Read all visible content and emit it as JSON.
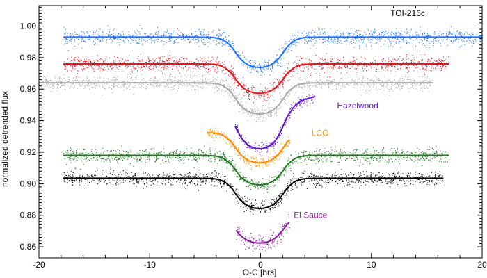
{
  "chart_data": {
    "type": "scatter",
    "title": "TOI-216c",
    "xlabel": "O-C [hrs]",
    "ylabel": "normalized detrended flux",
    "xlim": [
      -20,
      20
    ],
    "ylim": [
      0.853,
      1.013
    ],
    "x_ticks": [
      -20,
      -10,
      0,
      10,
      20
    ],
    "y_ticks": [
      0.86,
      0.88,
      0.9,
      0.92,
      0.94,
      0.96,
      0.98,
      1.0
    ],
    "grid": false,
    "series": [
      {
        "color": "#1f6fff",
        "baseline": 0.993,
        "depth": 0.018,
        "x_start": -17.8,
        "x_end": 20,
        "noise": 0.0024,
        "ingress": -2.6,
        "egress": 2.4
      },
      {
        "color": "#e8141b",
        "baseline": 0.976,
        "depth": 0.0175,
        "x_start": -17.8,
        "x_end": 17.0,
        "noise": 0.0024,
        "ingress": -2.6,
        "egress": 2.4
      },
      {
        "color": "#a8a8a8",
        "baseline": 0.964,
        "depth": 0.0185,
        "x_start": -19.8,
        "x_end": 15.5,
        "noise": 0.0024,
        "ingress": -2.6,
        "egress": 2.4
      },
      {
        "color": "#5b14c8",
        "baseline": 0.95,
        "depth": 0.026,
        "x_start": -2.3,
        "x_end": 4.9,
        "noise": 0.0016,
        "ingress": -2.6,
        "egress": 2.4,
        "trend": 0.0015,
        "truncated": true
      },
      {
        "color": "#ff8c00",
        "baseline": 0.9325,
        "depth": 0.018,
        "x_start": -4.8,
        "x_end": 2.6,
        "noise": 0.0018,
        "ingress": -2.6,
        "egress": 2.4
      },
      {
        "color": "#1d7a1d",
        "baseline": 0.918,
        "depth": 0.0175,
        "x_start": -17.8,
        "x_end": 17.0,
        "noise": 0.0022,
        "ingress": -2.6,
        "egress": 2.4
      },
      {
        "color": "#000000",
        "baseline": 0.9035,
        "depth": 0.018,
        "x_start": -17.8,
        "x_end": 16.5,
        "noise": 0.0022,
        "ingress": -2.6,
        "egress": 2.4
      },
      {
        "color": "#8b1a9a",
        "baseline": 0.88,
        "depth": 0.0165,
        "x_start": -2.2,
        "x_end": 2.6,
        "noise": 0.0025,
        "ingress": -2.6,
        "egress": 2.4,
        "truncated": true
      }
    ],
    "annotations": [
      {
        "text": "Hazelwood",
        "x": 6.9,
        "y": 0.9495,
        "color": "#5b14c8"
      },
      {
        "text": "LCO",
        "x": 4.6,
        "y": 0.9322,
        "color": "#ff8c00"
      },
      {
        "text": "El Sauce",
        "x": 3.0,
        "y": 0.8802,
        "color": "#8b1a9a"
      }
    ]
  }
}
